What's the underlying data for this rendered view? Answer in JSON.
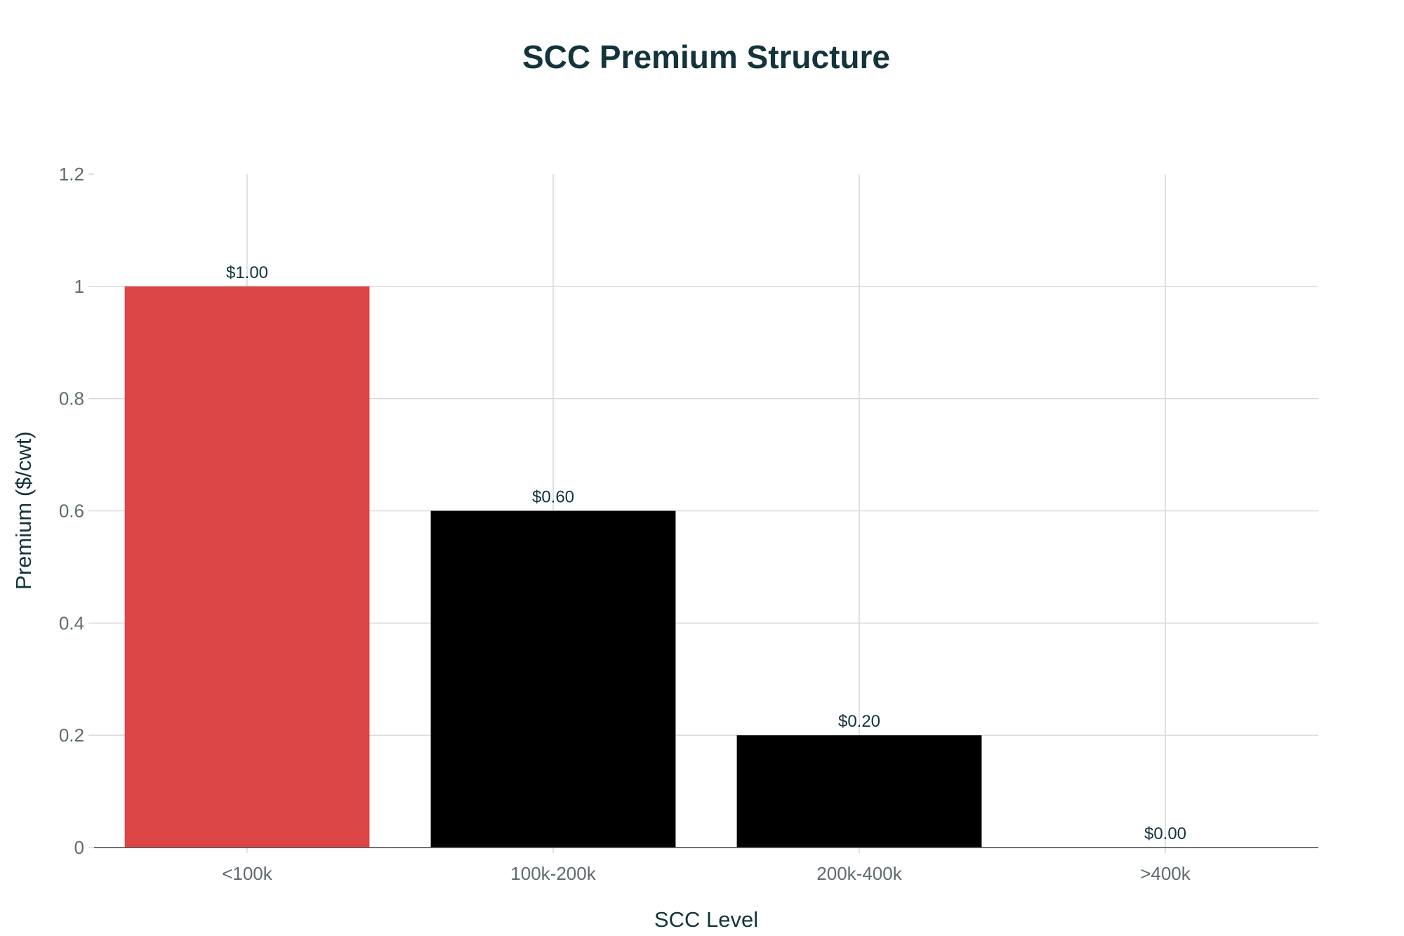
{
  "chart_data": {
    "type": "bar",
    "title": "SCC Premium Structure",
    "xlabel": "SCC Level",
    "ylabel": "Premium ($/cwt)",
    "categories": [
      "<100k",
      "100k-200k",
      "200k-400k",
      ">400k"
    ],
    "values": [
      1.0,
      0.6,
      0.2,
      0.0
    ],
    "data_labels": [
      "$1.00",
      "$0.60",
      "$0.20",
      "$0.00"
    ],
    "bar_colors": [
      "#db4545",
      "#000000",
      "#000000",
      "#000000"
    ],
    "ylim": [
      0,
      1.2
    ],
    "yticks": [
      0,
      0.2,
      0.4,
      0.6,
      0.8,
      1,
      1.2
    ],
    "ytick_labels": [
      "0",
      "0.2",
      "0.4",
      "0.6",
      "0.8",
      "1",
      "1.2"
    ],
    "grid": true,
    "legend": "none"
  }
}
